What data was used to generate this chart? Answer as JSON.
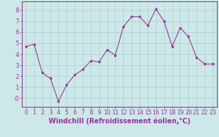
{
  "x": [
    0,
    1,
    2,
    3,
    4,
    5,
    6,
    7,
    8,
    9,
    10,
    11,
    12,
    13,
    14,
    15,
    16,
    17,
    18,
    19,
    20,
    21,
    22,
    23
  ],
  "y": [
    4.7,
    4.9,
    2.3,
    1.8,
    -0.3,
    1.2,
    2.1,
    2.6,
    3.4,
    3.3,
    4.4,
    3.9,
    6.5,
    7.4,
    7.4,
    6.6,
    8.1,
    7.0,
    4.7,
    6.4,
    5.6,
    3.7,
    3.1,
    3.1
  ],
  "line_color": "#993399",
  "marker": "*",
  "marker_size": 3,
  "bg_color": "#cce8e8",
  "grid_color": "#aacccc",
  "xlabel": "Windchill (Refroidissement éolien,°C)",
  "xlabel_color": "#993399",
  "tick_color": "#993399",
  "ylim": [
    -0.8,
    8.8
  ],
  "xlim": [
    -0.5,
    23.5
  ],
  "yticks": [
    0,
    1,
    2,
    3,
    4,
    5,
    6,
    7,
    8
  ],
  "ytick_labels": [
    "-0",
    "1",
    "2",
    "3",
    "4",
    "5",
    "6",
    "7",
    "8"
  ],
  "xticks": [
    0,
    1,
    2,
    3,
    4,
    5,
    6,
    7,
    8,
    9,
    10,
    11,
    12,
    13,
    14,
    15,
    16,
    17,
    18,
    19,
    20,
    21,
    22,
    23
  ],
  "font_size": 6,
  "label_font_size": 7
}
